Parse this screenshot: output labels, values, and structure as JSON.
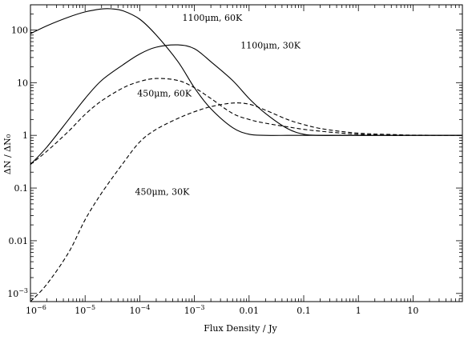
{
  "chart_data": {
    "type": "line",
    "xlabel": "Flux Density / Jy",
    "ylabel": "ΔN / ΔN₀",
    "xscale": "log",
    "yscale": "log",
    "xlim": [
      1e-06,
      80
    ],
    "ylim": [
      0.0007,
      300
    ],
    "grid": false,
    "x_ticks": [
      {
        "value": 1e-06,
        "label": "10",
        "exp": "−6"
      },
      {
        "value": 1e-05,
        "label": "10",
        "exp": "−5"
      },
      {
        "value": 0.0001,
        "label": "10",
        "exp": "−4"
      },
      {
        "value": 0.001,
        "label": "10",
        "exp": "−3"
      },
      {
        "value": 0.01,
        "label": "0.01",
        "exp": ""
      },
      {
        "value": 0.1,
        "label": "0.1",
        "exp": ""
      },
      {
        "value": 1,
        "label": "1",
        "exp": ""
      },
      {
        "value": 10,
        "label": "10",
        "exp": ""
      }
    ],
    "y_ticks": [
      {
        "value": 0.001,
        "label": "10",
        "exp": "−3"
      },
      {
        "value": 0.01,
        "label": "0.01",
        "exp": ""
      },
      {
        "value": 0.1,
        "label": "0.1",
        "exp": ""
      },
      {
        "value": 1,
        "label": "1",
        "exp": ""
      },
      {
        "value": 10,
        "label": "10",
        "exp": ""
      },
      {
        "value": 100,
        "label": "100",
        "exp": ""
      }
    ],
    "series": [
      {
        "label": "1100μm, 60K",
        "style": "solid",
        "x": [
          1e-06,
          2e-06,
          5e-06,
          1e-05,
          2e-05,
          3e-05,
          5e-05,
          0.0001,
          0.0002,
          0.0005,
          0.001,
          0.002,
          0.005,
          0.01,
          0.02,
          0.05,
          0.1,
          1,
          80
        ],
        "y": [
          85,
          120,
          175,
          220,
          250,
          252,
          230,
          160,
          80,
          25,
          8,
          3.2,
          1.4,
          1.05,
          1.0,
          1.0,
          1.0,
          1.0,
          1.0
        ]
      },
      {
        "label": "1100μm, 30K",
        "style": "solid",
        "x": [
          1e-06,
          2e-06,
          5e-06,
          1e-05,
          2e-05,
          5e-05,
          0.0001,
          0.0002,
          0.0005,
          0.001,
          0.002,
          0.005,
          0.01,
          0.02,
          0.05,
          0.1,
          0.2,
          0.5,
          1,
          80
        ],
        "y": [
          0.28,
          0.6,
          2.0,
          5.0,
          11,
          22,
          35,
          47,
          52,
          44,
          25,
          11,
          5,
          2.6,
          1.35,
          1.05,
          1.0,
          1.0,
          1.0,
          1.0
        ]
      },
      {
        "label": "450μm, 60K",
        "style": "dashed",
        "x": [
          1e-06,
          2e-06,
          5e-06,
          1e-05,
          2e-05,
          5e-05,
          0.0001,
          0.0002,
          0.0005,
          0.001,
          0.002,
          0.005,
          0.01,
          0.02,
          0.05,
          0.1,
          0.2,
          0.5,
          1,
          2,
          5,
          80
        ],
        "y": [
          0.28,
          0.5,
          1.2,
          2.5,
          4.5,
          8,
          10.5,
          12,
          11,
          8,
          5,
          2.6,
          2.0,
          1.7,
          1.45,
          1.3,
          1.2,
          1.1,
          1.05,
          1.02,
          1.0,
          1.0
        ]
      },
      {
        "label": "450μm, 30K",
        "style": "dashed",
        "x": [
          1e-06,
          2e-06,
          5e-06,
          1e-05,
          2e-05,
          5e-05,
          0.0001,
          0.0002,
          0.0005,
          0.001,
          0.002,
          0.005,
          0.01,
          0.02,
          0.05,
          0.1,
          0.2,
          0.5,
          1,
          2,
          5,
          10,
          80
        ],
        "y": [
          0.0007,
          0.0015,
          0.006,
          0.025,
          0.08,
          0.3,
          0.75,
          1.3,
          2.1,
          2.8,
          3.5,
          4.1,
          3.9,
          3.0,
          2.0,
          1.6,
          1.35,
          1.18,
          1.1,
          1.06,
          1.03,
          1.01,
          1.0
        ]
      }
    ],
    "annotations": [
      {
        "id": "1100-60",
        "text": "1100",
        "unit": "μm, 60K",
        "at_x": 0.0006,
        "at_y": 150
      },
      {
        "id": "1100-30",
        "text": "1100",
        "unit": "μm, 30K",
        "at_x": 0.007,
        "at_y": 45
      },
      {
        "id": "450-60",
        "text": "450",
        "unit": "μm, 60K",
        "at_x": 9e-05,
        "at_y": 5.5
      },
      {
        "id": "450-30",
        "text": "450",
        "unit": "μm, 30K",
        "at_x": 8.2e-05,
        "at_y": 0.075
      }
    ]
  }
}
